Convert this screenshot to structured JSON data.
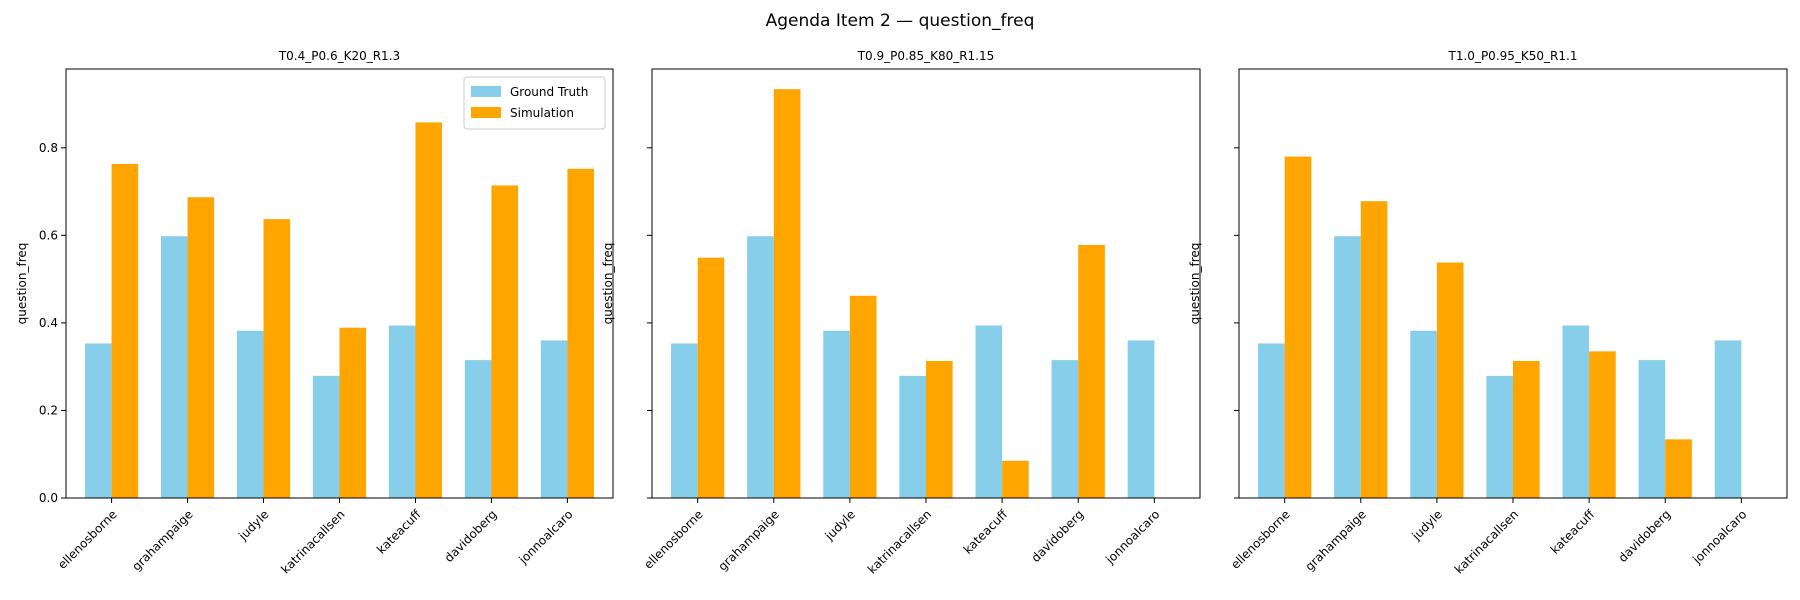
{
  "suptitle": "Agenda Item 2 — question_freq",
  "legend": {
    "placement": "top-right of first panel"
  },
  "chart_data": [
    {
      "type": "bar",
      "title": "T0.4_P0.6_K20_R1.3",
      "xlabel": "",
      "ylabel": "question_freq",
      "ylim": [
        0,
        0.98
      ],
      "yticks": [
        "0.0",
        "0.2",
        "0.4",
        "0.6",
        "0.8"
      ],
      "show_ytick_labels": true,
      "show_legend": true,
      "categories": [
        "ellenosborne",
        "grahampaige",
        "judyle",
        "katrinacallsen",
        "kateacuff",
        "davidoberg",
        "jonnoalcaro"
      ],
      "series": [
        {
          "name": "Ground Truth",
          "color": "#87ceeb",
          "values": [
            0.353,
            0.598,
            0.382,
            0.279,
            0.394,
            0.315,
            0.36
          ]
        },
        {
          "name": "Simulation",
          "color": "#ffa500",
          "values": [
            0.763,
            0.687,
            0.637,
            0.389,
            0.858,
            0.714,
            0.752
          ]
        }
      ]
    },
    {
      "type": "bar",
      "title": "T0.9_P0.85_K80_R1.15",
      "xlabel": "",
      "ylabel": "question_freq",
      "ylim": [
        0,
        0.98
      ],
      "yticks": [
        "0.0",
        "0.2",
        "0.4",
        "0.6",
        "0.8"
      ],
      "show_ytick_labels": false,
      "show_legend": false,
      "categories": [
        "ellenosborne",
        "grahampaige",
        "judyle",
        "katrinacallsen",
        "kateacuff",
        "davidoberg",
        "jonnoalcaro"
      ],
      "series": [
        {
          "name": "Ground Truth",
          "color": "#87ceeb",
          "values": [
            0.353,
            0.598,
            0.382,
            0.279,
            0.394,
            0.315,
            0.36
          ]
        },
        {
          "name": "Simulation",
          "color": "#ffa500",
          "values": [
            0.549,
            0.934,
            0.462,
            0.313,
            0.085,
            0.578,
            0.0
          ]
        }
      ]
    },
    {
      "type": "bar",
      "title": "T1.0_P0.95_K50_R1.1",
      "xlabel": "",
      "ylabel": "question_freq",
      "ylim": [
        0,
        0.98
      ],
      "yticks": [
        "0.0",
        "0.2",
        "0.4",
        "0.6",
        "0.8"
      ],
      "show_ytick_labels": false,
      "show_legend": false,
      "categories": [
        "ellenosborne",
        "grahampaige",
        "judyle",
        "katrinacallsen",
        "kateacuff",
        "davidoberg",
        "jonnoalcaro"
      ],
      "series": [
        {
          "name": "Ground Truth",
          "color": "#87ceeb",
          "values": [
            0.353,
            0.598,
            0.382,
            0.279,
            0.394,
            0.315,
            0.36
          ]
        },
        {
          "name": "Simulation",
          "color": "#ffa500",
          "values": [
            0.78,
            0.678,
            0.538,
            0.313,
            0.335,
            0.134,
            0.0
          ]
        }
      ]
    }
  ]
}
